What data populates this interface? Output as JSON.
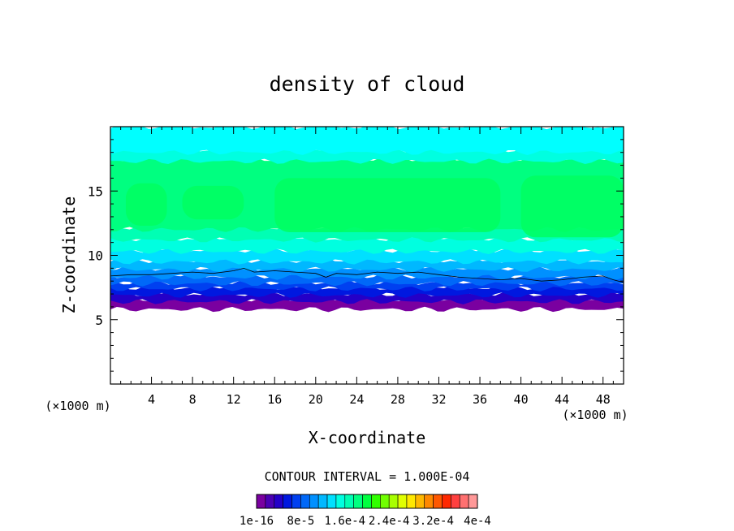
{
  "chart_data": {
    "type": "heatmap",
    "title": "density of cloud",
    "xlabel": "X-coordinate",
    "ylabel": "Z-coordinate",
    "x_unit": "(×1000 m)",
    "y_unit": "(×1000 m)",
    "xlim": [
      0,
      50
    ],
    "ylim": [
      0,
      20
    ],
    "x_ticks": [
      4,
      8,
      12,
      16,
      20,
      24,
      28,
      32,
      36,
      40,
      44,
      48
    ],
    "y_ticks": [
      5,
      10,
      15
    ],
    "contour_interval_label": "CONTOUR INTERVAL = 1.000E-04",
    "colorbar": {
      "tick_labels": [
        "1e-16",
        "8e-5",
        "1.6e-4",
        "2.4e-4",
        "3.2e-4",
        "4e-4"
      ],
      "colors": [
        "#7a00a0",
        "#4b00b4",
        "#2400c8",
        "#0018e0",
        "#0040f0",
        "#0068f8",
        "#0090ff",
        "#00b8ff",
        "#00e0ff",
        "#00ffe0",
        "#00ffb4",
        "#00ff80",
        "#00ff40",
        "#30ff00",
        "#70ff00",
        "#a8ff00",
        "#e0ff00",
        "#ffe800",
        "#ffb800",
        "#ff8800",
        "#ff5800",
        "#ff2800",
        "#ff4040",
        "#ff7070",
        "#ff9898"
      ]
    },
    "layers": [
      {
        "z_bottom": 5.8,
        "z_top": 6.6,
        "color": "#7a00a0"
      },
      {
        "z_bottom": 6.4,
        "z_top": 7.0,
        "color": "#2400c8"
      },
      {
        "z_bottom": 6.9,
        "z_top": 7.5,
        "color": "#0018e0"
      },
      {
        "z_bottom": 7.4,
        "z_top": 7.9,
        "color": "#0040f0"
      },
      {
        "z_bottom": 7.8,
        "z_top": 8.4,
        "color": "#0068f8"
      },
      {
        "z_bottom": 8.3,
        "z_top": 9.0,
        "color": "#0090ff"
      },
      {
        "z_bottom": 8.9,
        "z_top": 9.6,
        "color": "#00b8ff"
      },
      {
        "z_bottom": 9.5,
        "z_top": 10.4,
        "color": "#00e0ff"
      },
      {
        "z_bottom": 10.3,
        "z_top": 11.3,
        "color": "#00ffe0"
      },
      {
        "z_bottom": 11.2,
        "z_top": 12.2,
        "color": "#00ffb4"
      },
      {
        "z_bottom": 12.0,
        "z_top": 17.5,
        "color": "#00ff80"
      },
      {
        "z_bottom": 17.3,
        "z_top": 18.2,
        "color": "#00ffe0"
      },
      {
        "z_bottom": 18.0,
        "z_top": 20.0,
        "color": "#00ffff"
      }
    ],
    "core_patches": [
      {
        "x0": 1.5,
        "x1": 5.5,
        "z0": 12.3,
        "z1": 15.6
      },
      {
        "x0": 7.0,
        "x1": 13.0,
        "z0": 12.8,
        "z1": 15.4
      },
      {
        "x0": 16.0,
        "x1": 38.0,
        "z0": 11.8,
        "z1": 16.0
      },
      {
        "x0": 40.0,
        "x1": 50.0,
        "z0": 11.4,
        "z1": 16.2
      }
    ],
    "contour_line": {
      "x": [
        0,
        2,
        4,
        6,
        8,
        10,
        12,
        13,
        14,
        16,
        18,
        20,
        21,
        22,
        24,
        26,
        28,
        30,
        32,
        34,
        36,
        38,
        40,
        42,
        44,
        46,
        48,
        49,
        50
      ],
      "z": [
        8.4,
        8.5,
        8.5,
        8.6,
        8.7,
        8.6,
        8.8,
        9.0,
        8.7,
        8.8,
        8.7,
        8.6,
        8.3,
        8.6,
        8.5,
        8.7,
        8.6,
        8.7,
        8.5,
        8.3,
        8.2,
        8.1,
        8.2,
        8.0,
        8.1,
        8.3,
        8.4,
        8.1,
        7.9
      ]
    }
  }
}
